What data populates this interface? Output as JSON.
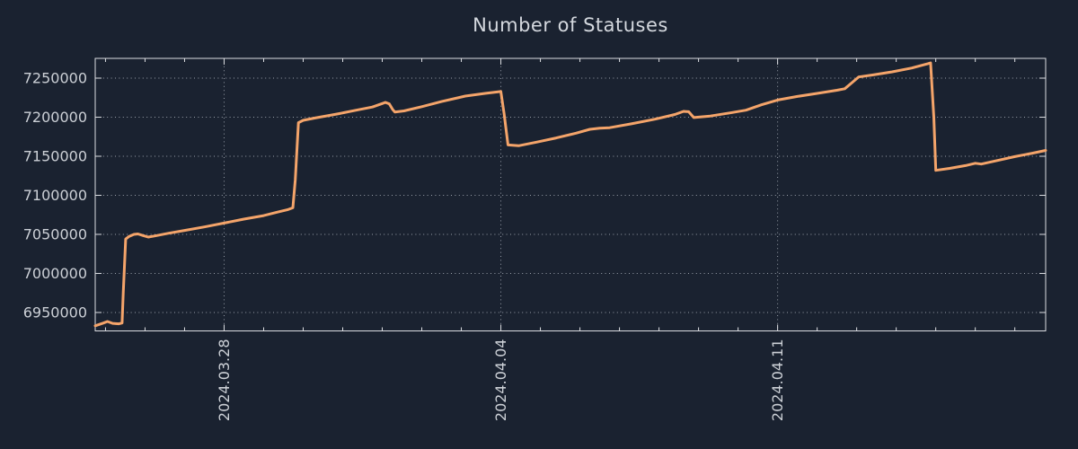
{
  "chart_data": {
    "type": "line",
    "title": "Number of Statuses",
    "legend": null,
    "grid": "dotted",
    "colors": {
      "background": "#1a2230",
      "line": "#f4a46a",
      "grid": "#9aa0aa",
      "frame": "#dcdee2",
      "labels": "#ccd0d6",
      "title": "#d4d8de"
    },
    "x_axis": {
      "label": "",
      "tick_labels": [
        "2024.03.28",
        "2024.04.04",
        "2024.04.11"
      ],
      "tick_days": [
        0,
        7,
        14
      ],
      "minor_tick_unit_days": 1,
      "domain_days": [
        -3.26,
        20.78
      ]
    },
    "y_axis": {
      "label": "",
      "tick_values": [
        6950000,
        7000000,
        7050000,
        7100000,
        7150000,
        7200000,
        7250000
      ],
      "domain": [
        6926400,
        7275300
      ]
    },
    "points": [
      {
        "d": -3.26,
        "v": 6933000
      },
      {
        "d": -3.05,
        "v": 6936500
      },
      {
        "d": -2.95,
        "v": 6938500
      },
      {
        "d": -2.82,
        "v": 6936000
      },
      {
        "d": -2.66,
        "v": 6935500
      },
      {
        "d": -2.58,
        "v": 6936500
      },
      {
        "d": -2.55,
        "v": 6975000
      },
      {
        "d": -2.49,
        "v": 7044000
      },
      {
        "d": -2.4,
        "v": 7047500
      },
      {
        "d": -2.28,
        "v": 7050000
      },
      {
        "d": -2.18,
        "v": 7050500
      },
      {
        "d": -2.05,
        "v": 7048500
      },
      {
        "d": -1.92,
        "v": 7046500
      },
      {
        "d": -1.75,
        "v": 7048000
      },
      {
        "d": -1.4,
        "v": 7051500
      },
      {
        "d": -1.0,
        "v": 7055000
      },
      {
        "d": -0.5,
        "v": 7059500
      },
      {
        "d": 0.0,
        "v": 7064500
      },
      {
        "d": 0.5,
        "v": 7069500
      },
      {
        "d": 1.0,
        "v": 7074000
      },
      {
        "d": 1.35,
        "v": 7078500
      },
      {
        "d": 1.6,
        "v": 7081500
      },
      {
        "d": 1.74,
        "v": 7084000
      },
      {
        "d": 1.8,
        "v": 7120000
      },
      {
        "d": 1.88,
        "v": 7193000
      },
      {
        "d": 2.0,
        "v": 7196000
      },
      {
        "d": 2.3,
        "v": 7199000
      },
      {
        "d": 2.9,
        "v": 7204500
      },
      {
        "d": 3.4,
        "v": 7209500
      },
      {
        "d": 3.75,
        "v": 7213000
      },
      {
        "d": 4.0,
        "v": 7217500
      },
      {
        "d": 4.08,
        "v": 7219000
      },
      {
        "d": 4.18,
        "v": 7217000
      },
      {
        "d": 4.26,
        "v": 7210000
      },
      {
        "d": 4.32,
        "v": 7206500
      },
      {
        "d": 4.55,
        "v": 7208000
      },
      {
        "d": 5.0,
        "v": 7213500
      },
      {
        "d": 5.5,
        "v": 7220000
      },
      {
        "d": 6.1,
        "v": 7227000
      },
      {
        "d": 6.6,
        "v": 7230500
      },
      {
        "d": 6.93,
        "v": 7232500
      },
      {
        "d": 7.0,
        "v": 7233000
      },
      {
        "d": 7.08,
        "v": 7205000
      },
      {
        "d": 7.18,
        "v": 7164500
      },
      {
        "d": 7.45,
        "v": 7163500
      },
      {
        "d": 7.9,
        "v": 7168000
      },
      {
        "d": 8.4,
        "v": 7173500
      },
      {
        "d": 8.9,
        "v": 7179500
      },
      {
        "d": 9.25,
        "v": 7184500
      },
      {
        "d": 9.5,
        "v": 7186000
      },
      {
        "d": 9.75,
        "v": 7186500
      },
      {
        "d": 10.3,
        "v": 7191500
      },
      {
        "d": 10.9,
        "v": 7197500
      },
      {
        "d": 11.4,
        "v": 7203500
      },
      {
        "d": 11.62,
        "v": 7207500
      },
      {
        "d": 11.75,
        "v": 7207000
      },
      {
        "d": 11.88,
        "v": 7199500
      },
      {
        "d": 12.3,
        "v": 7201500
      },
      {
        "d": 12.8,
        "v": 7205500
      },
      {
        "d": 13.2,
        "v": 7209000
      },
      {
        "d": 13.6,
        "v": 7216000
      },
      {
        "d": 14.0,
        "v": 7222000
      },
      {
        "d": 14.5,
        "v": 7226500
      },
      {
        "d": 15.0,
        "v": 7230500
      },
      {
        "d": 15.5,
        "v": 7234500
      },
      {
        "d": 15.7,
        "v": 7236500
      },
      {
        "d": 15.9,
        "v": 7245000
      },
      {
        "d": 16.05,
        "v": 7251500
      },
      {
        "d": 16.4,
        "v": 7254000
      },
      {
        "d": 16.9,
        "v": 7258000
      },
      {
        "d": 17.4,
        "v": 7263000
      },
      {
        "d": 17.8,
        "v": 7268500
      },
      {
        "d": 17.87,
        "v": 7269500
      },
      {
        "d": 17.95,
        "v": 7200000
      },
      {
        "d": 18.0,
        "v": 7132000
      },
      {
        "d": 18.35,
        "v": 7134500
      },
      {
        "d": 18.75,
        "v": 7138000
      },
      {
        "d": 19.0,
        "v": 7141000
      },
      {
        "d": 19.15,
        "v": 7140000
      },
      {
        "d": 19.55,
        "v": 7144500
      },
      {
        "d": 20.0,
        "v": 7149500
      },
      {
        "d": 20.4,
        "v": 7153500
      },
      {
        "d": 20.78,
        "v": 7157500
      }
    ]
  }
}
